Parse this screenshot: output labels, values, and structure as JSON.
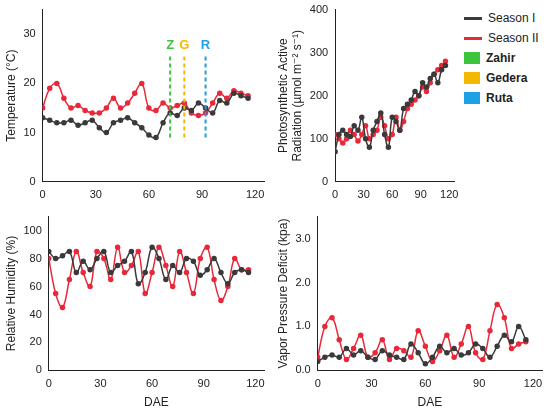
{
  "chart_data": [
    {
      "type": "line",
      "ylabel": "Temperature (°C)",
      "xlim": [
        0,
        125
      ],
      "xticks": [
        0,
        30,
        60,
        90,
        120
      ],
      "ylim": [
        0,
        35
      ],
      "yticks": [
        0,
        10,
        20,
        30
      ],
      "grid": false,
      "marker": "circle",
      "x": [
        0,
        4,
        8,
        12,
        16,
        20,
        24,
        28,
        32,
        36,
        40,
        44,
        48,
        52,
        56,
        60,
        64,
        68,
        72,
        76,
        80,
        84,
        88,
        92,
        96,
        100,
        104,
        108,
        112,
        116
      ],
      "series": [
        {
          "name": "Season I",
          "color": "#3a3a3a",
          "values": [
            13,
            12.5,
            12,
            12,
            12.5,
            11.5,
            12,
            12.5,
            11,
            10,
            12,
            12.5,
            13,
            12,
            11,
            9.5,
            9,
            12,
            14,
            13.5,
            15,
            14.5,
            16,
            15,
            14,
            16.5,
            16,
            18,
            17.5,
            17
          ]
        },
        {
          "name": "Season II",
          "color": "#e8293a",
          "values": [
            15,
            19,
            20,
            17,
            15,
            15.5,
            14.5,
            14,
            14,
            15,
            17,
            15,
            16,
            18,
            20,
            15,
            14.5,
            16,
            15,
            15.5,
            16,
            14,
            13.5,
            14,
            16,
            18,
            17,
            18.5,
            18,
            17.5
          ]
        }
      ],
      "markers": [
        {
          "label": "Z",
          "name": "Zahir",
          "color": "#3cc43c",
          "x": 72,
          "y_from": 9,
          "y_to": 26
        },
        {
          "label": "G",
          "name": "Gedera",
          "color": "#f5b800",
          "x": 80,
          "y_from": 9,
          "y_to": 26
        },
        {
          "label": "R",
          "name": "Ruta",
          "color": "#1ea0e6",
          "x": 92,
          "y_from": 9,
          "y_to": 26
        }
      ],
      "legend": "right"
    },
    {
      "type": "line",
      "ylabel": [
        "Photosynthetic Active",
        "Radiation (µmol m⁻² s⁻¹)"
      ],
      "xlim": [
        0,
        125
      ],
      "xticks": [
        0,
        30,
        60,
        90,
        120
      ],
      "ylim": [
        0,
        400
      ],
      "yticks": [
        0,
        100,
        200,
        300,
        400
      ],
      "grid": false,
      "marker": "circle",
      "x": [
        0,
        4,
        8,
        12,
        16,
        20,
        24,
        28,
        32,
        36,
        40,
        44,
        48,
        52,
        56,
        60,
        64,
        68,
        72,
        76,
        80,
        84,
        88,
        92,
        96,
        100,
        104,
        108,
        112,
        116
      ],
      "series": [
        {
          "name": "Season I",
          "color": "#3a3a3a",
          "values": [
            70,
            110,
            120,
            110,
            105,
            130,
            120,
            150,
            100,
            80,
            120,
            140,
            160,
            110,
            80,
            150,
            140,
            120,
            170,
            180,
            190,
            210,
            200,
            230,
            220,
            240,
            250,
            230,
            260,
            270
          ]
        },
        {
          "name": "Season II",
          "color": "#e8293a",
          "values": [
            110,
            100,
            90,
            100,
            120,
            110,
            95,
            110,
            130,
            100,
            110,
            120,
            150,
            130,
            100,
            110,
            150,
            120,
            140,
            170,
            180,
            190,
            200,
            220,
            210,
            230,
            250,
            260,
            270,
            280
          ]
        }
      ]
    },
    {
      "type": "line",
      "ylabel": "Relative Humidity (%)",
      "xlabel": "DAE",
      "xlim": [
        0,
        125
      ],
      "xticks": [
        0,
        30,
        60,
        90,
        120
      ],
      "ylim": [
        0,
        110
      ],
      "yticks": [
        0,
        20,
        40,
        60,
        80,
        100
      ],
      "grid": false,
      "marker": "circle",
      "x": [
        0,
        4,
        8,
        12,
        16,
        20,
        24,
        28,
        32,
        36,
        40,
        44,
        48,
        52,
        56,
        60,
        64,
        68,
        72,
        76,
        80,
        84,
        88,
        92,
        96,
        100,
        104,
        108,
        112,
        116
      ],
      "series": [
        {
          "name": "Season I",
          "color": "#3a3a3a",
          "values": [
            85,
            80,
            82,
            85,
            70,
            78,
            72,
            80,
            85,
            70,
            75,
            78,
            85,
            62,
            70,
            88,
            80,
            65,
            75,
            70,
            80,
            78,
            68,
            72,
            80,
            70,
            62,
            70,
            72,
            70
          ]
        },
        {
          "name": "Season II",
          "color": "#e8293a",
          "values": [
            80,
            55,
            45,
            65,
            85,
            70,
            60,
            85,
            80,
            65,
            88,
            70,
            75,
            85,
            55,
            70,
            88,
            75,
            60,
            85,
            70,
            55,
            80,
            88,
            65,
            50,
            60,
            80,
            72,
            72
          ]
        }
      ]
    },
    {
      "type": "line",
      "ylabel": "Vapor Pressure Deficit (kpa)",
      "xlabel": "DAE",
      "xlim": [
        0,
        125
      ],
      "xticks": [
        0,
        30,
        60,
        90,
        120
      ],
      "ylim": [
        0,
        3.5
      ],
      "yticks": [
        {
          "value": 0,
          "label": "0.0"
        },
        {
          "value": 1,
          "label": "1.0"
        },
        {
          "value": 2,
          "label": "2.0"
        },
        {
          "value": 3,
          "label": "3.0"
        }
      ],
      "grid": false,
      "marker": "circle",
      "x": [
        0,
        4,
        8,
        12,
        16,
        20,
        24,
        28,
        32,
        36,
        40,
        44,
        48,
        52,
        56,
        60,
        64,
        68,
        72,
        76,
        80,
        84,
        88,
        92,
        96,
        100,
        104,
        108,
        112,
        116
      ],
      "series": [
        {
          "name": "Season I",
          "color": "#3a3a3a",
          "values": [
            0.2,
            0.3,
            0.35,
            0.3,
            0.5,
            0.35,
            0.45,
            0.3,
            0.25,
            0.45,
            0.35,
            0.3,
            0.25,
            0.6,
            0.4,
            0.15,
            0.3,
            0.55,
            0.4,
            0.5,
            0.35,
            0.4,
            0.6,
            0.5,
            0.3,
            0.55,
            0.8,
            0.65,
            1.0,
            0.7
          ]
        },
        {
          "name": "Season II",
          "color": "#e8293a",
          "values": [
            0.3,
            1.0,
            1.2,
            0.7,
            0.25,
            0.5,
            0.8,
            0.3,
            0.4,
            0.7,
            0.25,
            0.5,
            0.45,
            0.3,
            0.9,
            0.55,
            0.2,
            0.45,
            0.8,
            0.3,
            0.6,
            1.0,
            0.4,
            0.25,
            0.9,
            1.5,
            1.2,
            0.5,
            0.6,
            0.65
          ]
        }
      ]
    }
  ]
}
